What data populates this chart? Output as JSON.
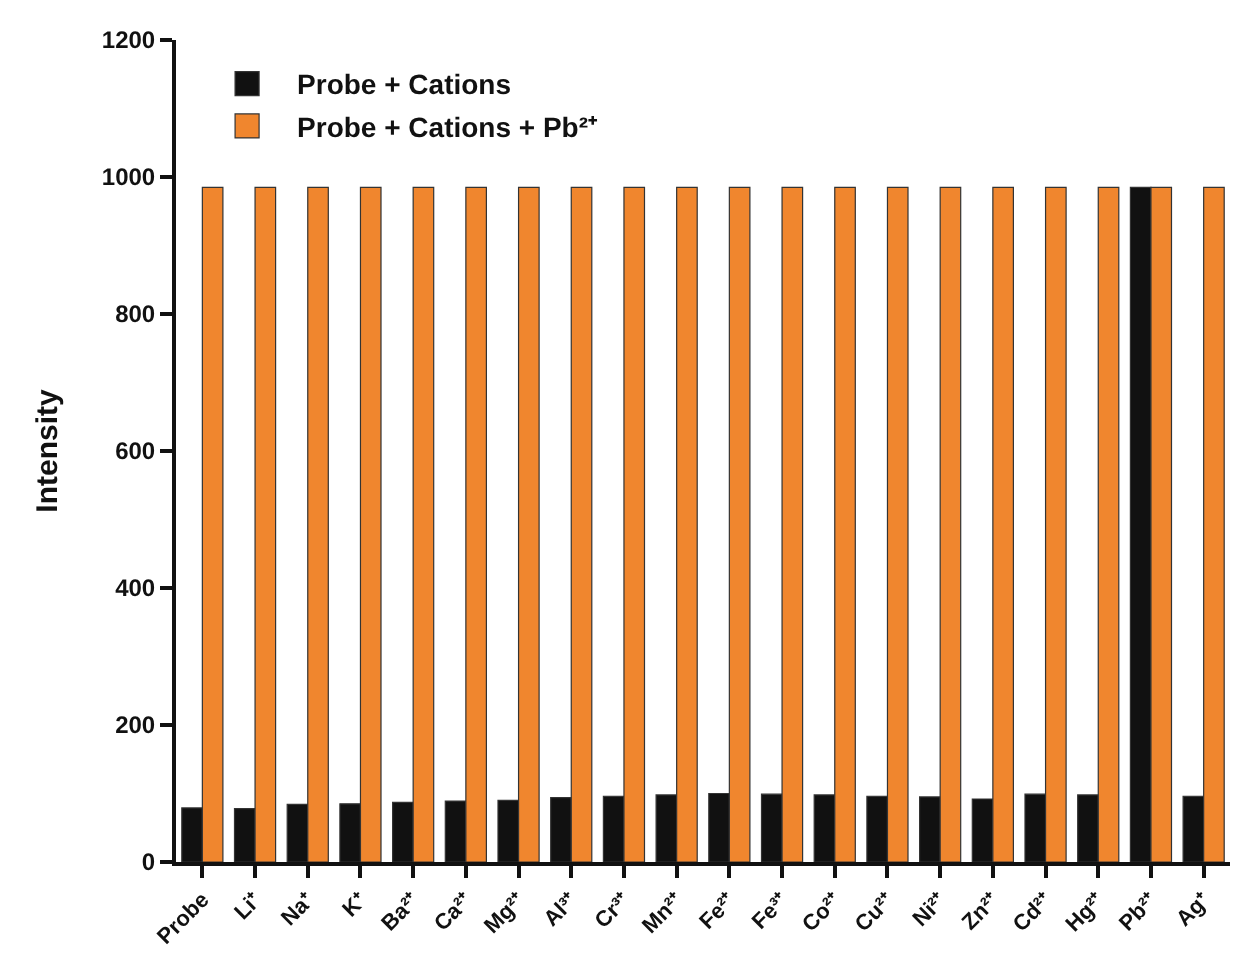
{
  "chart_data": {
    "type": "bar",
    "ylabel": "Intensity",
    "categories": [
      "Probe",
      "Li⁺",
      "Na⁺",
      "K⁺",
      "Ba²⁺",
      "Ca²⁺",
      "Mg²⁺",
      "Al³⁺",
      "Cr³⁺",
      "Mn²⁺",
      "Fe²⁺",
      "Fe³⁺",
      "Co²⁺",
      "Cu²⁺",
      "Ni²⁺",
      "Zn²⁺",
      "Cd²⁺",
      "Hg²⁺",
      "Pb²⁺",
      "Ag⁺"
    ],
    "series": [
      {
        "name": "Probe + Cations",
        "color": "#111111",
        "values": [
          79,
          78,
          84,
          85,
          87,
          89,
          90,
          94,
          96,
          98,
          100,
          99,
          98,
          96,
          95,
          92,
          99,
          98,
          985,
          96
        ]
      },
      {
        "name": "Probe + Cations + Pb²⁺",
        "color": "#f0862e",
        "values": [
          985,
          985,
          985,
          985,
          985,
          985,
          985,
          985,
          985,
          985,
          985,
          985,
          985,
          985,
          985,
          985,
          985,
          985,
          985,
          985
        ]
      }
    ],
    "ylim": [
      0,
      1200
    ],
    "yticks": [
      0,
      200,
      400,
      600,
      800,
      1000,
      1200
    ],
    "legend": "top left"
  }
}
